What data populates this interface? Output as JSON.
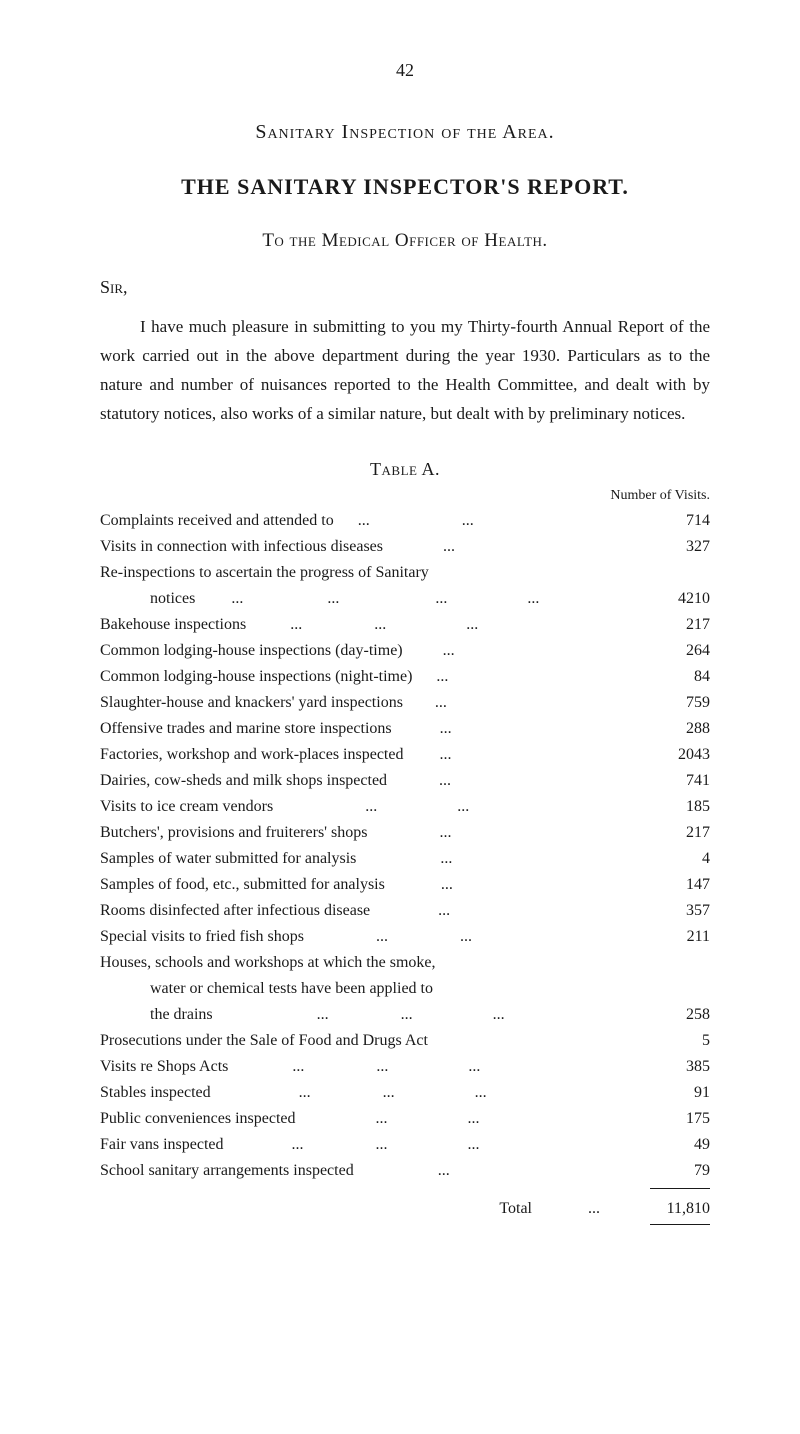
{
  "page_number": "42",
  "heading_1": "Sanitary Inspection of the Area.",
  "main_title": "THE SANITARY INSPECTOR'S REPORT.",
  "sub_heading": "To the Medical Officer of Health.",
  "salutation": "Sir,",
  "body_paragraph": "I have much pleasure in submitting to you my Thirty-fourth Annual Report of the work carried out in the above department during the year 1930. Particulars as to the nature and number of nuisances reported to the Health Committee, and dealt with by statutory notices, also works of a similar nature, but dealt with by preliminary notices.",
  "table_label": "Table A.",
  "column_header": "Number of Visits.",
  "rows": [
    {
      "label": "Complaints received and attended to      ...                       ...",
      "value": "714"
    },
    {
      "label": "Visits in connection with infectious diseases               ...",
      "value": "327"
    },
    {
      "label": "Re-inspections to ascertain the progress of Sanitary",
      "value": ""
    },
    {
      "label": "notices         ...                     ...                        ...                    ...",
      "value": "4210",
      "indent": true
    },
    {
      "label": "Bakehouse inspections           ...                  ...                    ...",
      "value": "217"
    },
    {
      "label": "Common lodging-house inspections (day-time)          ...",
      "value": "264"
    },
    {
      "label": "Common lodging-house inspections (night-time)      ...",
      "value": "84"
    },
    {
      "label": "Slaughter-house and knackers' yard inspections        ...",
      "value": "759"
    },
    {
      "label": "Offensive trades and marine store inspections            ...",
      "value": "288"
    },
    {
      "label": "Factories, workshop and work-places inspected         ...",
      "value": "2043"
    },
    {
      "label": "Dairies, cow-sheds and milk shops inspected             ...",
      "value": "741"
    },
    {
      "label": "Visits to ice cream vendors                       ...                    ...",
      "value": "185"
    },
    {
      "label": "Butchers', provisions and fruiterers' shops                  ...",
      "value": "217"
    },
    {
      "label": "Samples of water submitted for analysis                     ...",
      "value": "4"
    },
    {
      "label": "Samples of food, etc., submitted for analysis              ...",
      "value": "147"
    },
    {
      "label": "Rooms disinfected after infectious disease                 ...",
      "value": "357"
    },
    {
      "label": "Special visits to fried fish shops                  ...                  ...",
      "value": "211"
    },
    {
      "label": "Houses, schools and workshops at which the smoke,",
      "value": ""
    },
    {
      "label": "water or chemical tests have been applied to",
      "value": "",
      "indent": true
    },
    {
      "label": "the drains                          ...                  ...                    ...",
      "value": "258",
      "indent": true
    },
    {
      "label": "Prosecutions under the Sale of Food and Drugs Act",
      "value": "5"
    },
    {
      "label": "Visits re Shops Acts                ...                  ...                    ...",
      "value": "385"
    },
    {
      "label": "Stables inspected                      ...                  ...                    ...",
      "value": "91"
    },
    {
      "label": "Public conveniences inspected                    ...                    ...",
      "value": "175"
    },
    {
      "label": "Fair vans inspected                 ...                  ...                    ...",
      "value": "49"
    },
    {
      "label": "School sanitary arrangements inspected                     ...",
      "value": "79"
    }
  ],
  "total_label": "Total              ...",
  "total_value": "11,810"
}
